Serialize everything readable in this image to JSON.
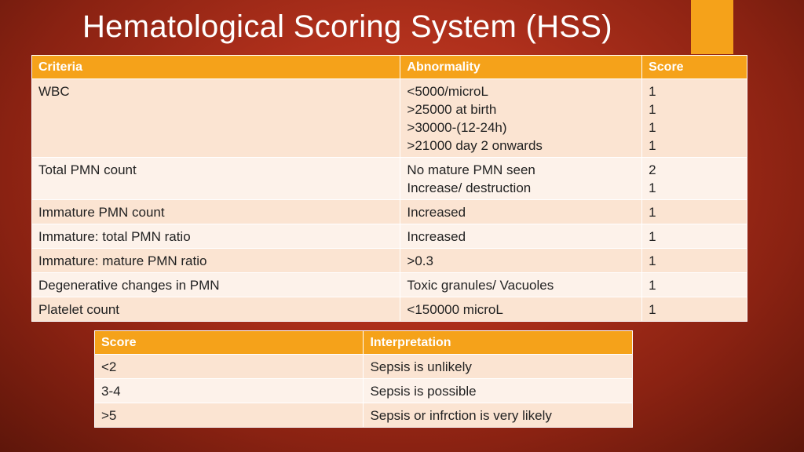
{
  "title": "Hematological Scoring System (HSS)",
  "colors": {
    "accent": "#f5a21a",
    "background": "#b0301c",
    "row_odd": "#fbe4d2",
    "row_even": "#fdf2ea"
  },
  "main_table": {
    "headers": [
      "Criteria",
      "Abnormality",
      "Score"
    ],
    "rows": [
      {
        "criteria": "WBC",
        "abnormality": [
          "<5000/microL",
          ">25000 at birth",
          ">30000-(12-24h)",
          ">21000 day 2 onwards"
        ],
        "score": [
          "1",
          "1",
          "1",
          "1"
        ]
      },
      {
        "criteria": "Total PMN count",
        "abnormality": [
          "No mature PMN seen",
          "Increase/ destruction"
        ],
        "score": [
          "2",
          "1"
        ]
      },
      {
        "criteria": "Immature PMN count",
        "abnormality": [
          "Increased"
        ],
        "score": [
          "1"
        ]
      },
      {
        "criteria": "Immature: total PMN ratio",
        "abnormality": [
          "Increased"
        ],
        "score": [
          "1"
        ]
      },
      {
        "criteria": "Immature: mature PMN ratio",
        "abnormality": [
          ">0.3"
        ],
        "score": [
          "1"
        ]
      },
      {
        "criteria": "Degenerative changes in PMN",
        "abnormality": [
          "Toxic granules/ Vacuoles"
        ],
        "score": [
          "1"
        ]
      },
      {
        "criteria": "Platelet count",
        "abnormality": [
          "<150000 microL"
        ],
        "score": [
          "1"
        ]
      }
    ]
  },
  "interp_table": {
    "headers": [
      "Score",
      "Interpretation"
    ],
    "rows": [
      {
        "score": "<2",
        "interpretation": "Sepsis is unlikely"
      },
      {
        "score": "3-4",
        "interpretation": "Sepsis is possible"
      },
      {
        "score": ">5",
        "interpretation": "Sepsis or infrction is very likely"
      }
    ]
  }
}
